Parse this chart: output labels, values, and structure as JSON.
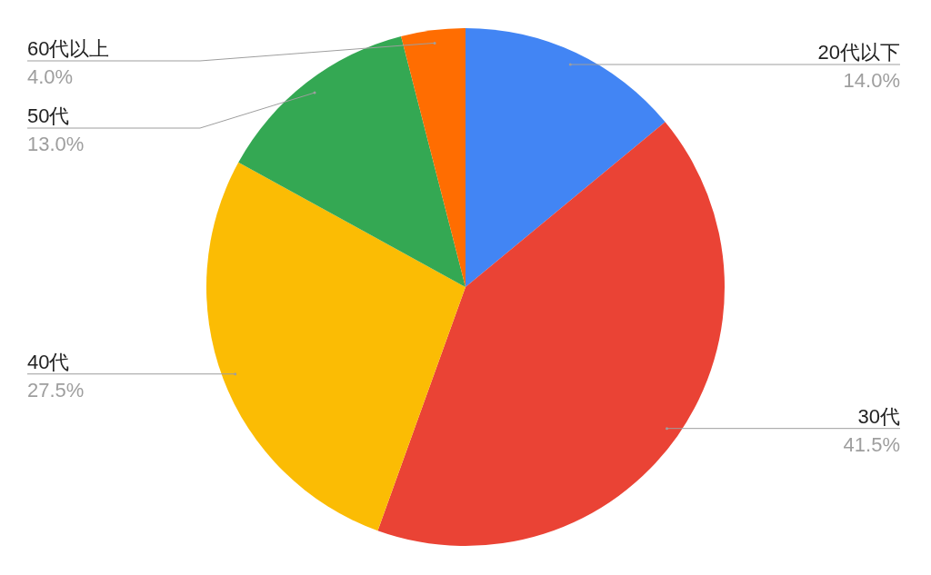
{
  "chart_data": {
    "type": "pie",
    "categories": [
      "20代以下",
      "30代",
      "40代",
      "50代",
      "60代以上"
    ],
    "values": [
      14.0,
      41.5,
      27.5,
      13.0,
      4.0
    ],
    "value_labels": [
      "14.0%",
      "41.5%",
      "27.5%",
      "13.0%",
      "4.0%"
    ],
    "colors": [
      "#4285f4",
      "#ea4335",
      "#fbbc04",
      "#34a853",
      "#ff6d01"
    ]
  }
}
